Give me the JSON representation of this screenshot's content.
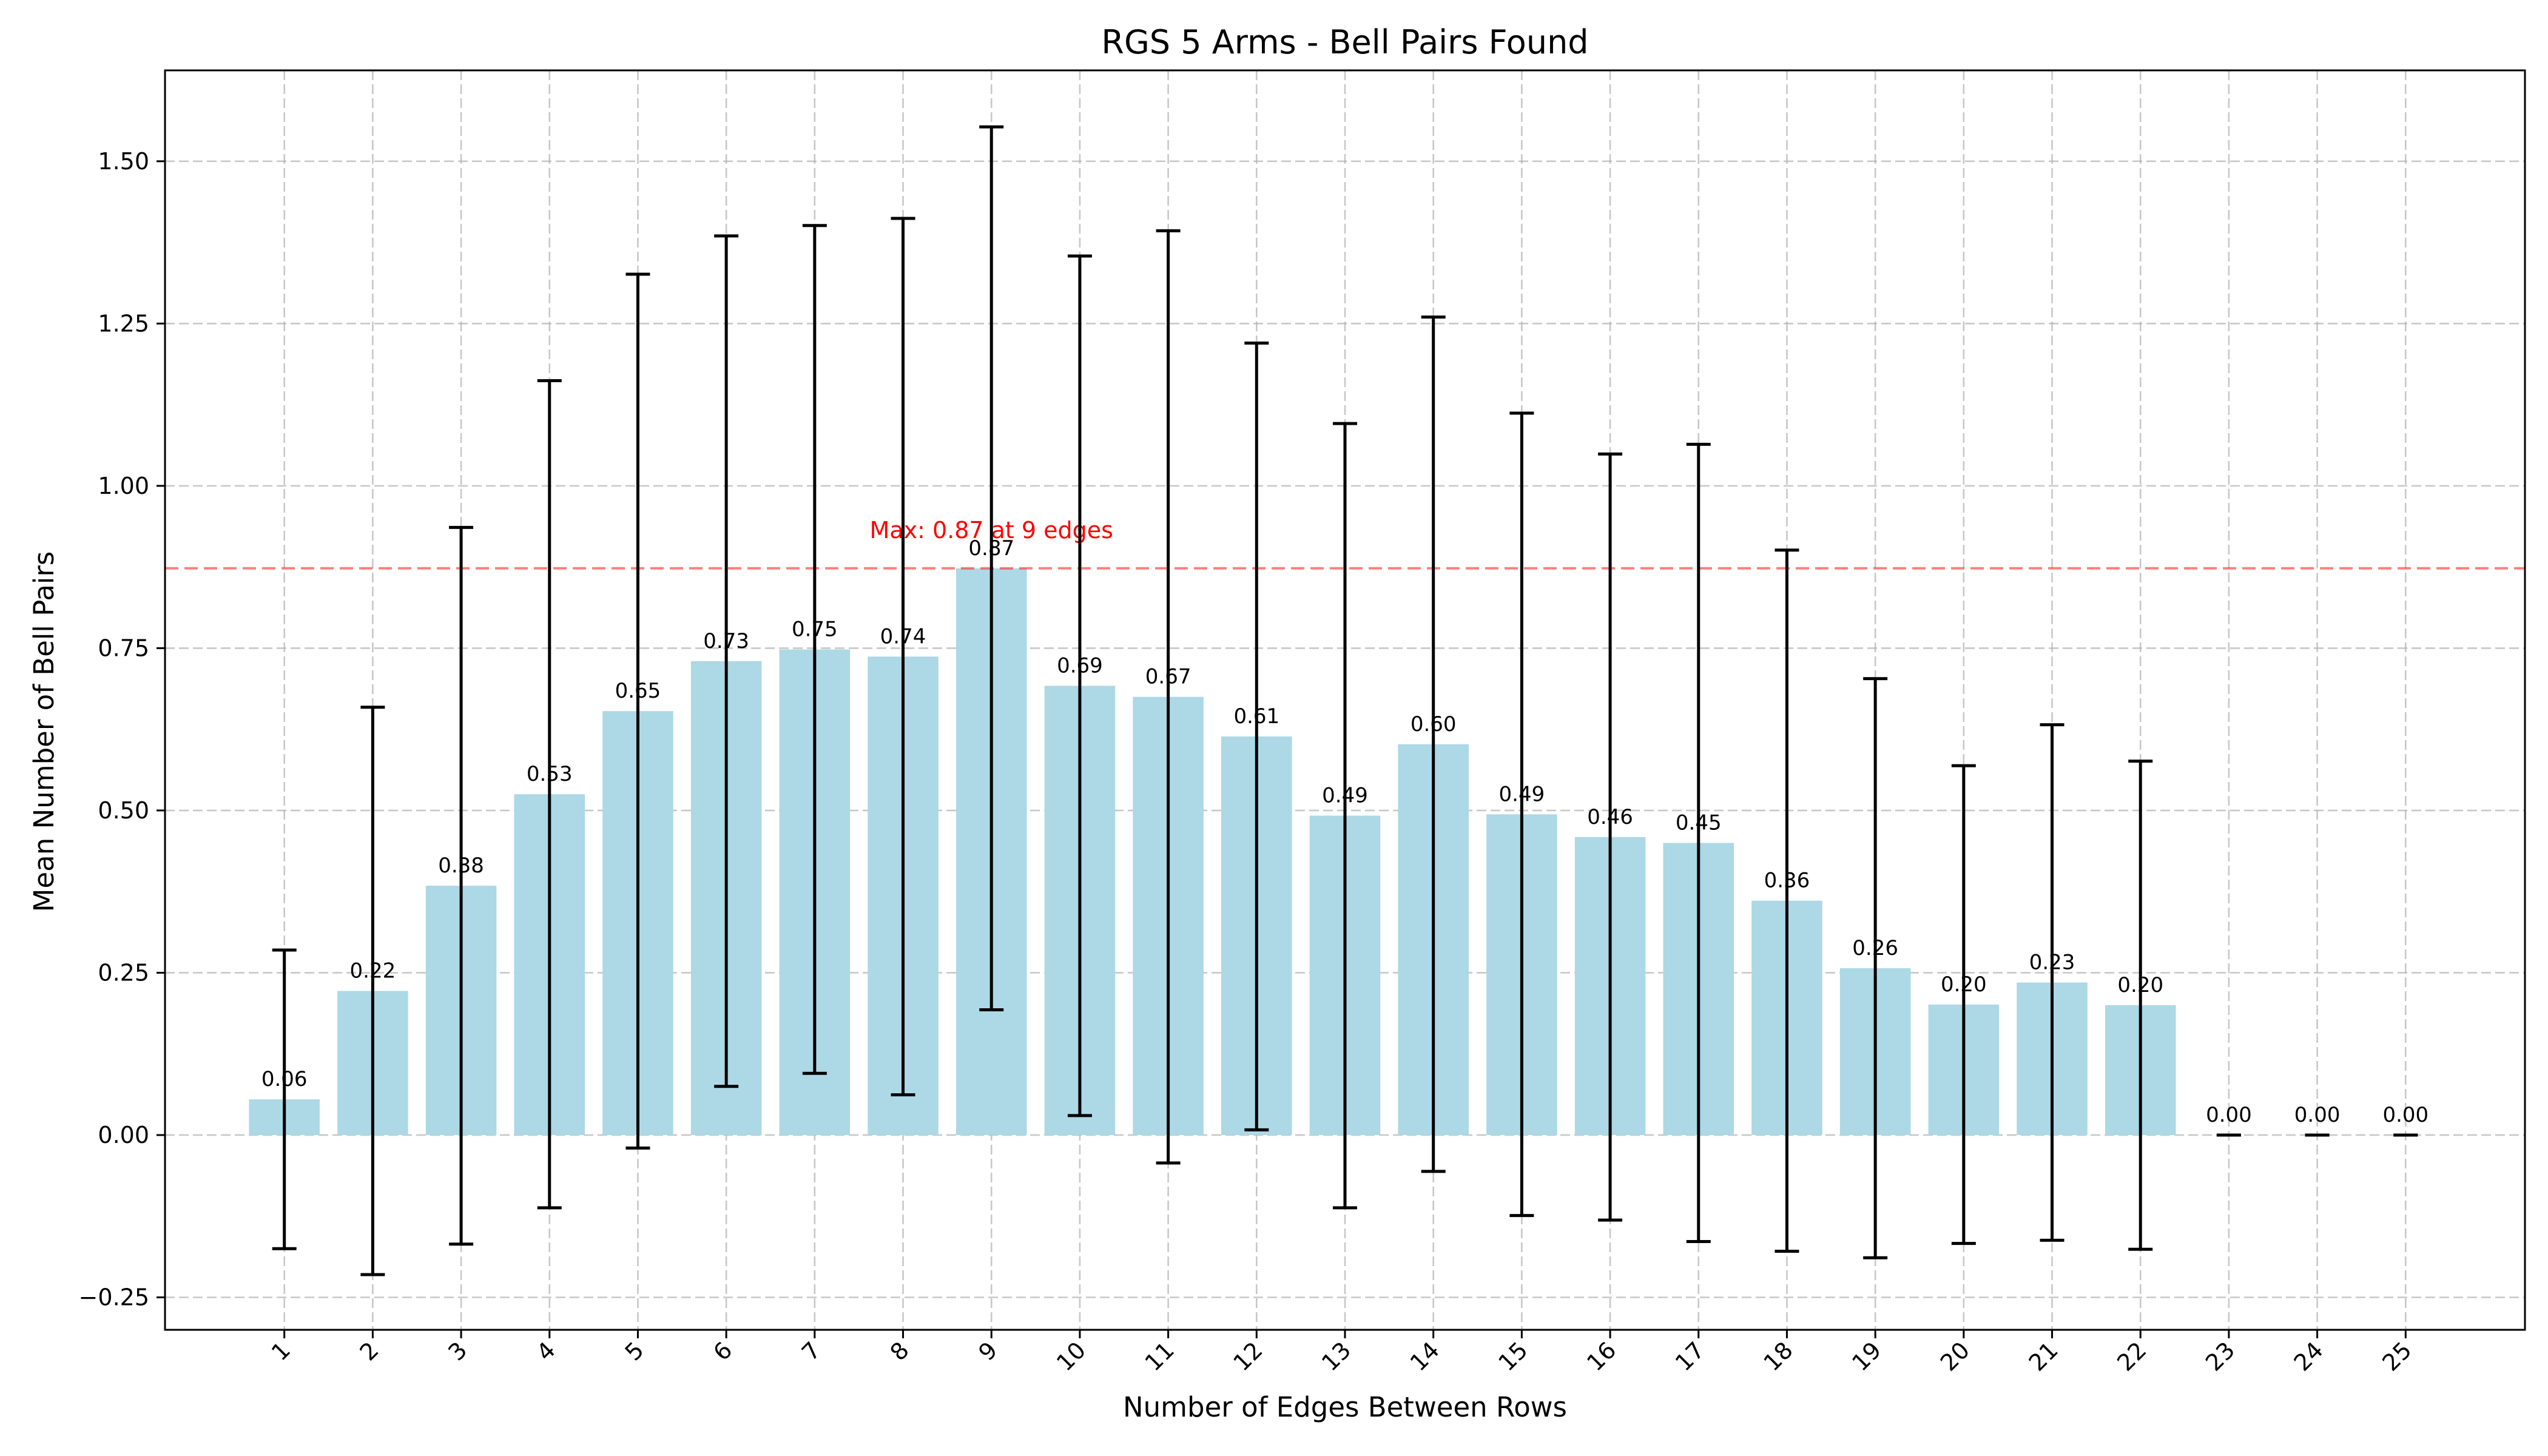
{
  "chart_data": {
    "type": "bar",
    "title": "RGS 5 Arms - Bell Pairs Found",
    "xlabel": "Number of Edges Between Rows",
    "ylabel": "Mean Number of Bell Pairs",
    "categories": [
      "1",
      "2",
      "3",
      "4",
      "5",
      "6",
      "7",
      "8",
      "9",
      "10",
      "11",
      "12",
      "13",
      "14",
      "15",
      "16",
      "17",
      "18",
      "19",
      "20",
      "21",
      "22",
      "23",
      "24",
      "25"
    ],
    "values": [
      0.055,
      0.222,
      0.384,
      0.525,
      0.653,
      0.73,
      0.748,
      0.737,
      0.873,
      0.692,
      0.675,
      0.614,
      0.492,
      0.602,
      0.494,
      0.459,
      0.45,
      0.361,
      0.257,
      0.201,
      0.235,
      0.2,
      0.0,
      0.0,
      0.0
    ],
    "errors": [
      0.23,
      0.437,
      0.552,
      0.637,
      0.673,
      0.655,
      0.653,
      0.675,
      0.68,
      0.662,
      0.718,
      0.606,
      0.604,
      0.658,
      0.618,
      0.59,
      0.614,
      0.54,
      0.446,
      0.368,
      0.397,
      0.376,
      0.0,
      0.0,
      0.0
    ],
    "data_labels": [
      "0.06",
      "0.22",
      "0.38",
      "0.53",
      "0.65",
      "0.73",
      "0.75",
      "0.74",
      "0.87",
      "0.69",
      "0.67",
      "0.61",
      "0.49",
      "0.60",
      "0.49",
      "0.46",
      "0.45",
      "0.36",
      "0.26",
      "0.20",
      "0.23",
      "0.20",
      "0.00",
      "0.00",
      "0.00"
    ],
    "ylim": [
      -0.3,
      1.64
    ],
    "yticks": [
      -0.25,
      0.0,
      0.25,
      0.5,
      0.75,
      1.0,
      1.25,
      1.5
    ],
    "ytick_labels": [
      "−0.25",
      "0.00",
      "0.25",
      "0.50",
      "0.75",
      "1.00",
      "1.25",
      "1.50"
    ],
    "grid": true,
    "bar_color": "#add8e6",
    "reference_line": {
      "value": 0.873,
      "color": "#ff0000",
      "label": "Max: 0.87 at 9 edges",
      "label_at_category": "9"
    }
  }
}
